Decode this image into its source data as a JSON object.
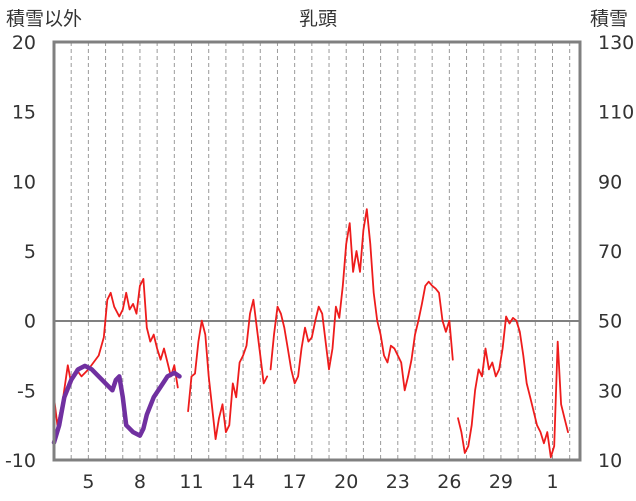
{
  "chart_data": {
    "type": "line",
    "title": "乳頭",
    "ylabel_left": "積雪以外",
    "ylabel_right": "積雪",
    "x_tick_labels": [
      "5",
      "8",
      "11",
      "14",
      "17",
      "20",
      "23",
      "26",
      "29",
      "1"
    ],
    "ylim_left": [
      -10,
      20
    ],
    "y_ticks_left": [
      -10,
      -5,
      0,
      5,
      10,
      15,
      20
    ],
    "ylim_right": [
      10,
      130
    ],
    "y_ticks_right": [
      10,
      30,
      50,
      70,
      90,
      110,
      130
    ],
    "grid": "vertical dashed gridlines, one per day",
    "x_domain": [
      3.0,
      33.6
    ],
    "series": [
      {
        "color": "#ee1c1c",
        "axis": "left",
        "segments": [
          [
            [
              3.0,
              -5.5
            ],
            [
              3.2,
              -7.5
            ],
            [
              3.5,
              -5.8
            ],
            [
              3.8,
              -3.2
            ],
            [
              4.0,
              -4.5
            ],
            [
              4.3,
              -3.5
            ],
            [
              4.6,
              -4.0
            ],
            [
              5.0,
              -3.5
            ],
            [
              5.3,
              -3.0
            ],
            [
              5.6,
              -2.5
            ],
            [
              5.9,
              -1.2
            ],
            [
              6.1,
              1.5
            ],
            [
              6.3,
              2.0
            ],
            [
              6.5,
              1.0
            ],
            [
              6.8,
              0.3
            ],
            [
              7.0,
              0.8
            ],
            [
              7.2,
              2.0
            ],
            [
              7.4,
              0.8
            ],
            [
              7.6,
              1.2
            ],
            [
              7.8,
              0.5
            ],
            [
              8.0,
              2.5
            ],
            [
              8.2,
              3.0
            ],
            [
              8.4,
              -0.5
            ],
            [
              8.6,
              -1.5
            ],
            [
              8.8,
              -1.0
            ],
            [
              9.0,
              -2.0
            ],
            [
              9.2,
              -2.8
            ],
            [
              9.4,
              -2.0
            ],
            [
              9.6,
              -3.0
            ],
            [
              9.8,
              -4.0
            ],
            [
              10.0,
              -3.2
            ],
            [
              10.2,
              -4.8
            ]
          ],
          [
            [
              10.8,
              -6.5
            ],
            [
              11.0,
              -4.0
            ],
            [
              11.2,
              -3.8
            ],
            [
              11.4,
              -1.5
            ],
            [
              11.6,
              0.0
            ],
            [
              11.8,
              -1.0
            ],
            [
              12.0,
              -4.0
            ],
            [
              12.2,
              -6.2
            ],
            [
              12.4,
              -8.5
            ],
            [
              12.6,
              -7.0
            ],
            [
              12.8,
              -6.0
            ],
            [
              13.0,
              -8.0
            ],
            [
              13.2,
              -7.5
            ],
            [
              13.4,
              -4.5
            ],
            [
              13.6,
              -5.5
            ],
            [
              13.8,
              -3.0
            ],
            [
              14.0,
              -2.5
            ],
            [
              14.2,
              -1.8
            ],
            [
              14.4,
              0.5
            ],
            [
              14.6,
              1.5
            ],
            [
              14.8,
              -0.5
            ],
            [
              15.0,
              -2.5
            ],
            [
              15.2,
              -4.5
            ],
            [
              15.4,
              -4.0
            ]
          ],
          [
            [
              15.6,
              -3.5
            ],
            [
              15.8,
              -1.0
            ],
            [
              16.0,
              1.0
            ],
            [
              16.2,
              0.5
            ],
            [
              16.4,
              -0.5
            ],
            [
              16.6,
              -2.0
            ],
            [
              16.8,
              -3.5
            ],
            [
              17.0,
              -4.5
            ],
            [
              17.2,
              -4.0
            ],
            [
              17.4,
              -2.0
            ],
            [
              17.6,
              -0.5
            ],
            [
              17.8,
              -1.5
            ],
            [
              18.0,
              -1.2
            ],
            [
              18.2,
              0.0
            ],
            [
              18.4,
              1.0
            ],
            [
              18.6,
              0.5
            ],
            [
              18.8,
              -1.5
            ],
            [
              19.0,
              -3.5
            ],
            [
              19.2,
              -2.0
            ],
            [
              19.4,
              1.0
            ],
            [
              19.6,
              0.2
            ],
            [
              19.8,
              2.5
            ],
            [
              20.0,
              5.5
            ],
            [
              20.2,
              7.0
            ],
            [
              20.4,
              3.5
            ],
            [
              20.6,
              5.0
            ],
            [
              20.8,
              3.5
            ],
            [
              21.0,
              6.5
            ],
            [
              21.2,
              8.0
            ],
            [
              21.4,
              5.5
            ],
            [
              21.6,
              2.0
            ],
            [
              21.8,
              0.0
            ],
            [
              22.0,
              -1.0
            ],
            [
              22.2,
              -2.5
            ],
            [
              22.4,
              -3.0
            ],
            [
              22.6,
              -1.8
            ],
            [
              22.8,
              -2.0
            ],
            [
              23.0,
              -2.5
            ],
            [
              23.2,
              -3.0
            ],
            [
              23.4,
              -5.0
            ],
            [
              23.6,
              -4.0
            ],
            [
              23.8,
              -2.8
            ],
            [
              24.0,
              -1.0
            ],
            [
              24.2,
              0.0
            ],
            [
              24.4,
              1.2
            ],
            [
              24.6,
              2.5
            ],
            [
              24.8,
              2.8
            ],
            [
              25.0,
              2.5
            ],
            [
              25.2,
              2.3
            ],
            [
              25.4,
              2.0
            ],
            [
              25.6,
              0.0
            ],
            [
              25.8,
              -0.8
            ],
            [
              26.0,
              0.0
            ],
            [
              26.2,
              -2.8
            ]
          ],
          [
            [
              26.5,
              -7.0
            ],
            [
              26.7,
              -8.0
            ],
            [
              26.9,
              -9.5
            ],
            [
              27.1,
              -9.0
            ],
            [
              27.3,
              -7.5
            ],
            [
              27.5,
              -5.0
            ],
            [
              27.7,
              -3.5
            ],
            [
              27.9,
              -4.0
            ],
            [
              28.1,
              -2.0
            ],
            [
              28.3,
              -3.5
            ],
            [
              28.5,
              -3.0
            ],
            [
              28.7,
              -4.0
            ],
            [
              28.9,
              -3.5
            ],
            [
              29.1,
              -2.0
            ],
            [
              29.3,
              0.3
            ],
            [
              29.5,
              -0.2
            ],
            [
              29.7,
              0.2
            ],
            [
              29.9,
              0.0
            ],
            [
              30.1,
              -0.8
            ],
            [
              30.3,
              -2.5
            ],
            [
              30.5,
              -4.5
            ],
            [
              30.7,
              -5.5
            ],
            [
              30.9,
              -6.5
            ],
            [
              31.1,
              -7.5
            ],
            [
              31.3,
              -8.0
            ],
            [
              31.5,
              -8.8
            ],
            [
              31.7,
              -8.0
            ],
            [
              31.9,
              -9.8
            ],
            [
              32.1,
              -9.0
            ],
            [
              32.3,
              -1.5
            ],
            [
              32.5,
              -6.0
            ],
            [
              32.7,
              -7.0
            ],
            [
              32.9,
              -8.0
            ]
          ]
        ]
      },
      {
        "color": "#7030a0",
        "axis": "right",
        "segments": [
          [
            [
              3.0,
              15
            ],
            [
              3.3,
              20
            ],
            [
              3.6,
              28
            ],
            [
              4.0,
              33
            ],
            [
              4.4,
              36
            ],
            [
              4.8,
              37
            ],
            [
              5.2,
              36
            ],
            [
              5.6,
              34
            ],
            [
              6.0,
              32
            ],
            [
              6.4,
              30
            ],
            [
              6.6,
              33
            ],
            [
              6.8,
              34
            ],
            [
              7.0,
              28
            ],
            [
              7.2,
              20
            ],
            [
              7.6,
              18
            ],
            [
              8.0,
              17
            ],
            [
              8.2,
              19
            ],
            [
              8.4,
              23
            ],
            [
              8.8,
              28
            ],
            [
              9.2,
              31
            ],
            [
              9.6,
              34
            ],
            [
              10.0,
              35
            ],
            [
              10.3,
              34
            ]
          ]
        ]
      }
    ]
  }
}
